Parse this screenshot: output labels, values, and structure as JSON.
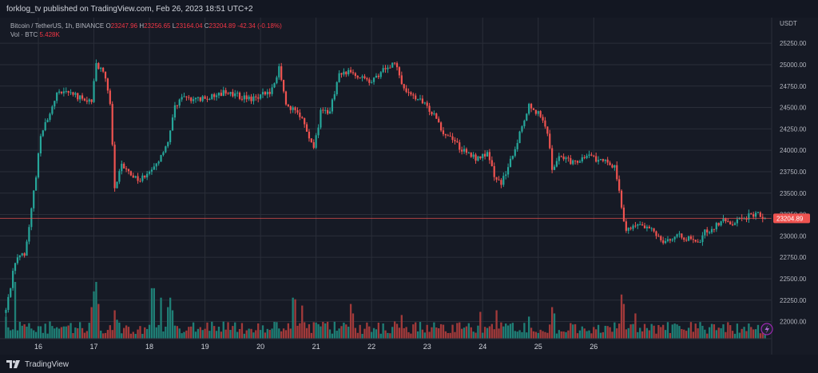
{
  "header": {
    "published": "forklog_tv published on TradingView.com, Feb 26, 2023 18:51 UTC+2"
  },
  "footer": {
    "brand": "TradingView"
  },
  "legend": {
    "symbol": "Bitcoin / TetherUS, 1h, BINANCE",
    "open_label": "O",
    "open": "23247.96",
    "high_label": "H",
    "high": "23256.65",
    "low_label": "L",
    "low": "23164.04",
    "close_label": "C",
    "close": "23204.89",
    "change": "-42.34 (-0.18%)",
    "volume_label": "Vol · BTC",
    "volume": "5.428K"
  },
  "colors": {
    "background": "#161a25",
    "grid": "#2a2e39",
    "up": "#26a69a",
    "down": "#ef5350",
    "up_volume": "#1f7f76",
    "down_volume": "#a23a3a",
    "price_line": "#ef5350",
    "axis_text": "#b2b5be"
  },
  "chart_data": {
    "type": "candlestick",
    "symbol": "Bitcoin / TetherUS",
    "interval": "1h",
    "exchange": "BINANCE",
    "currency": "USDT",
    "last_price": "23204.89",
    "ylim": [
      21800,
      25550
    ],
    "y_ticks": [
      "25250.00",
      "25000.00",
      "24750.00",
      "24500.00",
      "24250.00",
      "24000.00",
      "23750.00",
      "23500.00",
      "23250.00",
      "23000.00",
      "22750.00",
      "22500.00",
      "22250.00",
      "22000.00"
    ],
    "x_ticks": [
      "16",
      "17",
      "18",
      "19",
      "20",
      "21",
      "22",
      "23",
      "24",
      "25",
      "26"
    ],
    "grid": true,
    "price_path": [
      {
        "t": 0,
        "p": 22130
      },
      {
        "t": 4,
        "p": 22700
      },
      {
        "t": 8,
        "p": 22800
      },
      {
        "t": 10,
        "p": 23100
      },
      {
        "t": 12,
        "p": 23500
      },
      {
        "t": 15,
        "p": 24150
      },
      {
        "t": 19,
        "p": 24450
      },
      {
        "t": 22,
        "p": 24650
      },
      {
        "t": 26,
        "p": 24720
      },
      {
        "t": 30,
        "p": 24640
      },
      {
        "t": 34,
        "p": 24580
      },
      {
        "t": 37,
        "p": 24580
      },
      {
        "t": 39,
        "p": 25000
      },
      {
        "t": 42,
        "p": 24950
      },
      {
        "t": 45,
        "p": 24550
      },
      {
        "t": 47,
        "p": 23550
      },
      {
        "t": 50,
        "p": 23820
      },
      {
        "t": 54,
        "p": 23720
      },
      {
        "t": 58,
        "p": 23650
      },
      {
        "t": 62,
        "p": 23780
      },
      {
        "t": 66,
        "p": 23850
      },
      {
        "t": 70,
        "p": 24100
      },
      {
        "t": 73,
        "p": 24500
      },
      {
        "t": 77,
        "p": 24620
      },
      {
        "t": 82,
        "p": 24580
      },
      {
        "t": 88,
        "p": 24620
      },
      {
        "t": 94,
        "p": 24680
      },
      {
        "t": 100,
        "p": 24640
      },
      {
        "t": 105,
        "p": 24600
      },
      {
        "t": 110,
        "p": 24640
      },
      {
        "t": 115,
        "p": 24700
      },
      {
        "t": 118,
        "p": 24950
      },
      {
        "t": 121,
        "p": 24560
      },
      {
        "t": 125,
        "p": 24450
      },
      {
        "t": 129,
        "p": 24320
      },
      {
        "t": 133,
        "p": 24000
      },
      {
        "t": 136,
        "p": 24450
      },
      {
        "t": 140,
        "p": 24450
      },
      {
        "t": 144,
        "p": 24900
      },
      {
        "t": 148,
        "p": 24920
      },
      {
        "t": 153,
        "p": 24850
      },
      {
        "t": 158,
        "p": 24780
      },
      {
        "t": 163,
        "p": 24950
      },
      {
        "t": 168,
        "p": 25030
      },
      {
        "t": 171,
        "p": 24800
      },
      {
        "t": 174,
        "p": 24650
      },
      {
        "t": 178,
        "p": 24600
      },
      {
        "t": 182,
        "p": 24500
      },
      {
        "t": 186,
        "p": 24400
      },
      {
        "t": 189,
        "p": 24200
      },
      {
        "t": 193,
        "p": 24150
      },
      {
        "t": 197,
        "p": 24000
      },
      {
        "t": 200,
        "p": 23950
      },
      {
        "t": 204,
        "p": 23900
      },
      {
        "t": 208,
        "p": 23950
      },
      {
        "t": 211,
        "p": 23700
      },
      {
        "t": 214,
        "p": 23620
      },
      {
        "t": 217,
        "p": 23800
      },
      {
        "t": 220,
        "p": 24000
      },
      {
        "t": 223,
        "p": 24300
      },
      {
        "t": 226,
        "p": 24540
      },
      {
        "t": 229,
        "p": 24450
      },
      {
        "t": 232,
        "p": 24380
      },
      {
        "t": 234,
        "p": 24200
      },
      {
        "t": 236,
        "p": 23800
      },
      {
        "t": 240,
        "p": 23950
      },
      {
        "t": 244,
        "p": 23850
      },
      {
        "t": 248,
        "p": 23900
      },
      {
        "t": 252,
        "p": 23950
      },
      {
        "t": 256,
        "p": 23880
      },
      {
        "t": 260,
        "p": 23850
      },
      {
        "t": 263,
        "p": 23820
      },
      {
        "t": 266,
        "p": 23350
      },
      {
        "t": 268,
        "p": 23050
      },
      {
        "t": 272,
        "p": 23150
      },
      {
        "t": 276,
        "p": 23100
      },
      {
        "t": 280,
        "p": 23050
      },
      {
        "t": 284,
        "p": 22950
      },
      {
        "t": 288,
        "p": 22970
      },
      {
        "t": 292,
        "p": 23000
      },
      {
        "t": 296,
        "p": 22950
      },
      {
        "t": 299,
        "p": 22900
      },
      {
        "t": 302,
        "p": 23050
      },
      {
        "t": 306,
        "p": 23100
      },
      {
        "t": 309,
        "p": 23180
      },
      {
        "t": 313,
        "p": 23150
      },
      {
        "t": 317,
        "p": 23200
      },
      {
        "t": 321,
        "p": 23230
      },
      {
        "t": 325,
        "p": 23250
      },
      {
        "t": 328,
        "p": 23205
      }
    ],
    "volume_spikes": [
      {
        "t": 0,
        "v": 14000
      },
      {
        "t": 4,
        "v": 36000
      },
      {
        "t": 37,
        "v": 20000
      },
      {
        "t": 38,
        "v": 30000
      },
      {
        "t": 39,
        "v": 36000
      },
      {
        "t": 40,
        "v": 22000
      },
      {
        "t": 47,
        "v": 18000
      },
      {
        "t": 48,
        "v": 12000
      },
      {
        "t": 63,
        "v": 32000
      },
      {
        "t": 64,
        "v": 32000
      },
      {
        "t": 67,
        "v": 26000
      },
      {
        "t": 70,
        "v": 20000
      },
      {
        "t": 71,
        "v": 26000
      },
      {
        "t": 72,
        "v": 18000
      },
      {
        "t": 124,
        "v": 26000
      },
      {
        "t": 125,
        "v": 25000
      },
      {
        "t": 128,
        "v": 21000
      },
      {
        "t": 149,
        "v": 22000
      },
      {
        "t": 150,
        "v": 16000
      },
      {
        "t": 171,
        "v": 15000
      },
      {
        "t": 205,
        "v": 17000
      },
      {
        "t": 212,
        "v": 18000
      },
      {
        "t": 226,
        "v": 14000
      },
      {
        "t": 236,
        "v": 20000
      },
      {
        "t": 237,
        "v": 16000
      },
      {
        "t": 266,
        "v": 28000
      },
      {
        "t": 267,
        "v": 22000
      },
      {
        "t": 272,
        "v": 16000
      },
      {
        "t": 324,
        "v": 6000
      }
    ]
  }
}
